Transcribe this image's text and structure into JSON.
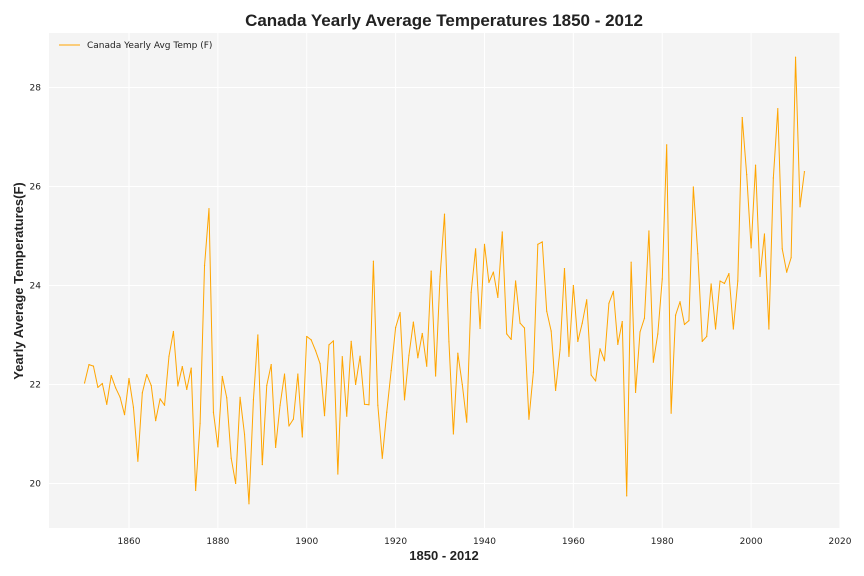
{
  "chart_data": {
    "type": "line",
    "title": "Canada Yearly Average Temperatures 1850 - 2012",
    "xlabel": "1850 - 2012",
    "ylabel": "Yearly Average Temperatures(F)",
    "xlim": [
      1842,
      2020
    ],
    "ylim": [
      19.1,
      29.1
    ],
    "x_ticks": [
      1860,
      1880,
      1900,
      1920,
      1940,
      1960,
      1980,
      2000,
      2020
    ],
    "y_ticks": [
      20,
      22,
      24,
      26,
      28
    ],
    "grid": true,
    "legend_position": "top-left",
    "colors": {
      "line": "#ffa500",
      "plot_bg": "#f4f4f4",
      "grid": "#ffffff"
    },
    "series": [
      {
        "name": "Canada Yearly Avg Temp (F)",
        "x_start": 1850,
        "x_end": 2012,
        "values": [
          22.03,
          22.4,
          22.37,
          21.94,
          22.02,
          21.6,
          22.18,
          21.93,
          21.74,
          21.39,
          22.12,
          21.54,
          20.45,
          21.83,
          22.2,
          21.98,
          21.27,
          21.71,
          21.58,
          22.57,
          23.07,
          21.97,
          22.36,
          21.9,
          22.33,
          19.86,
          21.21,
          24.4,
          25.55,
          21.44,
          20.74,
          22.16,
          21.73,
          20.51,
          20.0,
          21.74,
          20.99,
          19.59,
          21.69,
          23.0,
          20.38,
          21.98,
          22.4,
          20.73,
          21.58,
          22.21,
          21.16,
          21.3,
          22.21,
          20.94,
          22.97,
          22.9,
          22.68,
          22.42,
          21.37,
          22.8,
          22.88,
          20.19,
          22.56,
          21.36,
          22.87,
          22.0,
          22.57,
          21.6,
          21.59,
          24.49,
          21.58,
          20.51,
          21.44,
          22.28,
          23.15,
          23.45,
          21.69,
          22.59,
          23.26,
          22.54,
          23.03,
          22.37,
          24.29,
          22.17,
          24.18,
          25.44,
          22.86,
          21.0,
          22.63,
          22.0,
          21.24,
          23.86,
          24.74,
          23.13,
          24.83,
          24.06,
          24.27,
          23.76,
          25.08,
          23.02,
          22.91,
          24.09,
          23.24,
          23.14,
          21.3,
          22.25,
          24.83,
          24.88,
          23.48,
          23.08,
          21.88,
          22.7,
          24.34,
          22.57,
          24.0,
          22.87,
          23.24,
          23.71,
          22.19,
          22.07,
          22.72,
          22.48,
          23.64,
          23.88,
          22.81,
          23.27,
          19.75,
          24.47,
          21.84,
          23.06,
          23.34,
          25.1,
          22.45,
          23.02,
          24.13,
          26.84,
          21.42,
          23.4,
          23.67,
          23.21,
          23.29,
          25.99,
          24.64,
          22.87,
          22.97,
          24.03,
          23.12,
          24.09,
          24.04,
          24.24,
          23.12,
          24.09,
          27.39,
          26.24,
          24.76,
          26.43,
          24.18,
          25.04,
          23.12,
          26.17,
          27.57,
          24.74,
          24.27,
          24.56,
          28.61,
          25.59,
          26.3
        ]
      }
    ]
  }
}
